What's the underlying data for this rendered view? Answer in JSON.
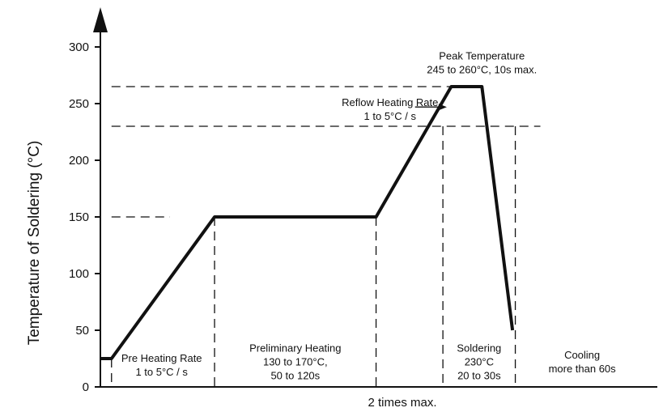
{
  "chart_data": {
    "type": "line",
    "title": "",
    "xlabel": "2 times max.",
    "ylabel": "Temperature of Soldering (°C)",
    "ylim": [
      0,
      300
    ],
    "yticks": [
      0,
      50,
      100,
      150,
      200,
      250,
      300
    ],
    "xlim": [
      0,
      100
    ],
    "grid": false,
    "series": [
      {
        "x": [
          0,
          2,
          20.5,
          49.5,
          63,
          68.5,
          74
        ],
        "values": [
          25,
          25,
          150,
          150,
          265,
          265,
          50
        ]
      }
    ],
    "reference_lines": {
      "horizontal": [
        {
          "y": 265,
          "x_from": 2,
          "x_to": 68.5
        },
        {
          "y": 230,
          "x_from": 2,
          "x_to": 79
        },
        {
          "y": 150,
          "x_from": 2,
          "x_to": 12.5
        }
      ],
      "vertical": [
        {
          "x": 2,
          "y_from": 25,
          "y_to": 0
        },
        {
          "x": 20.5,
          "y_from": 150,
          "y_to": 0
        },
        {
          "x": 49.5,
          "y_from": 150,
          "y_to": 0
        },
        {
          "x": 61.5,
          "y_from": 230,
          "y_to": 0
        },
        {
          "x": 74.5,
          "y_from": 230,
          "y_to": 0
        }
      ]
    },
    "annotations": [
      {
        "lines": [
          "Pre Heating Rate",
          "1 to 5°C / s"
        ],
        "x": 11,
        "y": 22
      },
      {
        "lines": [
          "Preliminary Heating",
          "130 to 170°C,",
          "50 to 120s"
        ],
        "x": 35,
        "y": 31
      },
      {
        "lines": [
          "Soldering",
          "230°C",
          "20 to 30s"
        ],
        "x": 68,
        "y": 31
      },
      {
        "lines": [
          "Cooling",
          "more than 60s"
        ],
        "x": 86.5,
        "y": 25
      },
      {
        "lines": [
          "Peak Temperature",
          "245 to 260°C, 10s max."
        ],
        "x": 68.5,
        "y": 289
      },
      {
        "lines": [
          "Reflow Heating Rate",
          "1 to 5°C / s"
        ],
        "x": 52,
        "y": 248
      }
    ],
    "arrow_annotation": {
      "from": [
        56.5,
        247
      ],
      "to": [
        62.2,
        247
      ]
    }
  }
}
